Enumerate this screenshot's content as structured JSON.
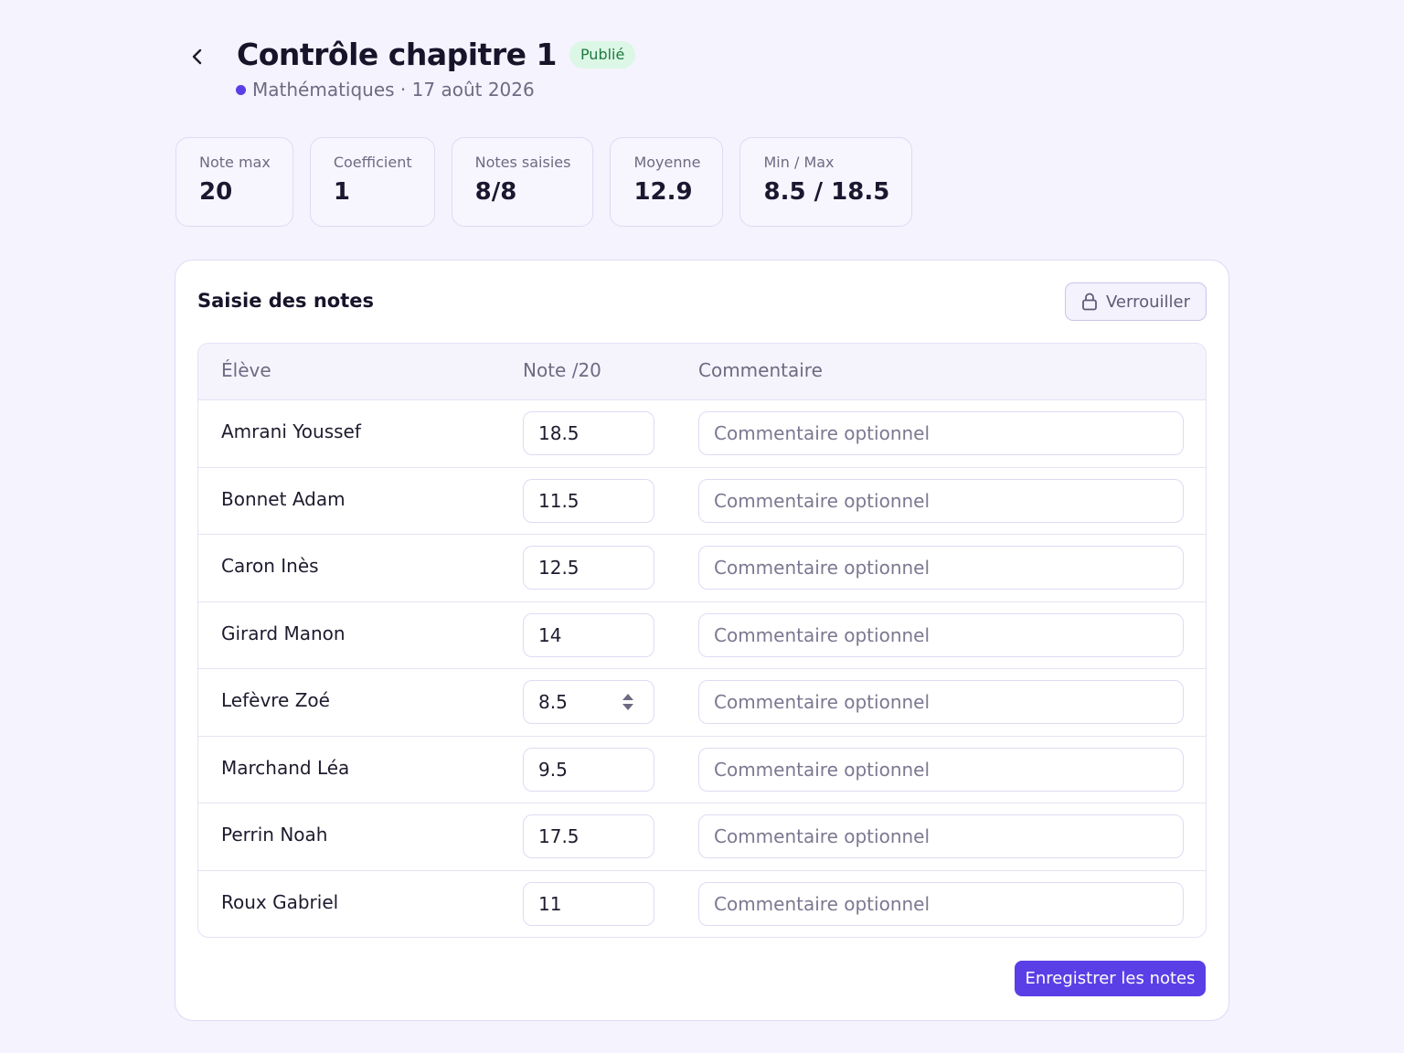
{
  "header": {
    "title": "Contrôle chapitre 1",
    "status_badge": "Publié",
    "subtitle": "Mathématiques · 17 août 2026",
    "subject_color": "#5a3fe6"
  },
  "stats": [
    {
      "label": "Note max",
      "value": "20"
    },
    {
      "label": "Coefficient",
      "value": "1"
    },
    {
      "label": "Notes saisies",
      "value": "8/8"
    },
    {
      "label": "Moyenne",
      "value": "12.9"
    },
    {
      "label": "Min / Max",
      "value": "8.5 / 18.5"
    }
  ],
  "grading": {
    "title": "Saisie des notes",
    "lock_label": "Verrouiller",
    "columns": {
      "student": "Élève",
      "grade": "Note /20",
      "comment": "Commentaire"
    },
    "comment_placeholder": "Commentaire optionnel",
    "rows": [
      {
        "name": "Amrani Youssef",
        "grade": "18.5"
      },
      {
        "name": "Bonnet Adam",
        "grade": "11.5"
      },
      {
        "name": "Caron Inès",
        "grade": "12.5"
      },
      {
        "name": "Girard Manon",
        "grade": "14"
      },
      {
        "name": "Lefèvre Zoé",
        "grade": "8.5"
      },
      {
        "name": "Marchand Léa",
        "grade": "9.5"
      },
      {
        "name": "Perrin Noah",
        "grade": "17.5"
      },
      {
        "name": "Roux Gabriel",
        "grade": "11"
      }
    ],
    "save_label": "Enregistrer les notes"
  }
}
